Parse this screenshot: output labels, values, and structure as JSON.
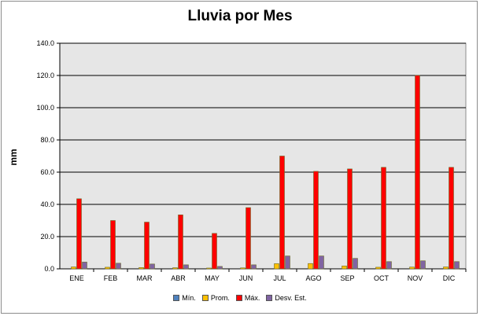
{
  "chart_data": {
    "type": "bar",
    "title": "Lluvia por Mes",
    "xlabel": "",
    "ylabel": "mm",
    "ylim": [
      0,
      140
    ],
    "yticks": [
      "0.0",
      "20.0",
      "40.0",
      "60.0",
      "80.0",
      "100.0",
      "120.0",
      "140.0"
    ],
    "grid": true,
    "legend_position": "bottom",
    "categories": [
      "ENE",
      "FEB",
      "MAR",
      "ABR",
      "MAY",
      "JUN",
      "JUL",
      "AGO",
      "SEP",
      "OCT",
      "NOV",
      "DIC"
    ],
    "series": [
      {
        "name": "Mín.",
        "color": "#4f81bd",
        "values": [
          0,
          0,
          0,
          0,
          0,
          0,
          0,
          0,
          0,
          0,
          0,
          0
        ]
      },
      {
        "name": "Prom.",
        "color": "#ffc000",
        "values": [
          1.2,
          1.0,
          0.8,
          0.7,
          0.5,
          0.6,
          3.2,
          3.3,
          1.8,
          1.0,
          1.1,
          1.2
        ]
      },
      {
        "name": "Máx.",
        "color": "#ff0000",
        "values": [
          43.5,
          30.0,
          29.0,
          33.5,
          22.0,
          38.0,
          70.0,
          60.5,
          62.0,
          63.0,
          120.0,
          63.0
        ]
      },
      {
        "name": "Desv. Est.",
        "color": "#8064a2",
        "values": [
          4.2,
          3.5,
          3.0,
          2.5,
          1.5,
          2.5,
          8.0,
          8.0,
          6.5,
          4.5,
          5.0,
          4.5
        ]
      }
    ]
  }
}
